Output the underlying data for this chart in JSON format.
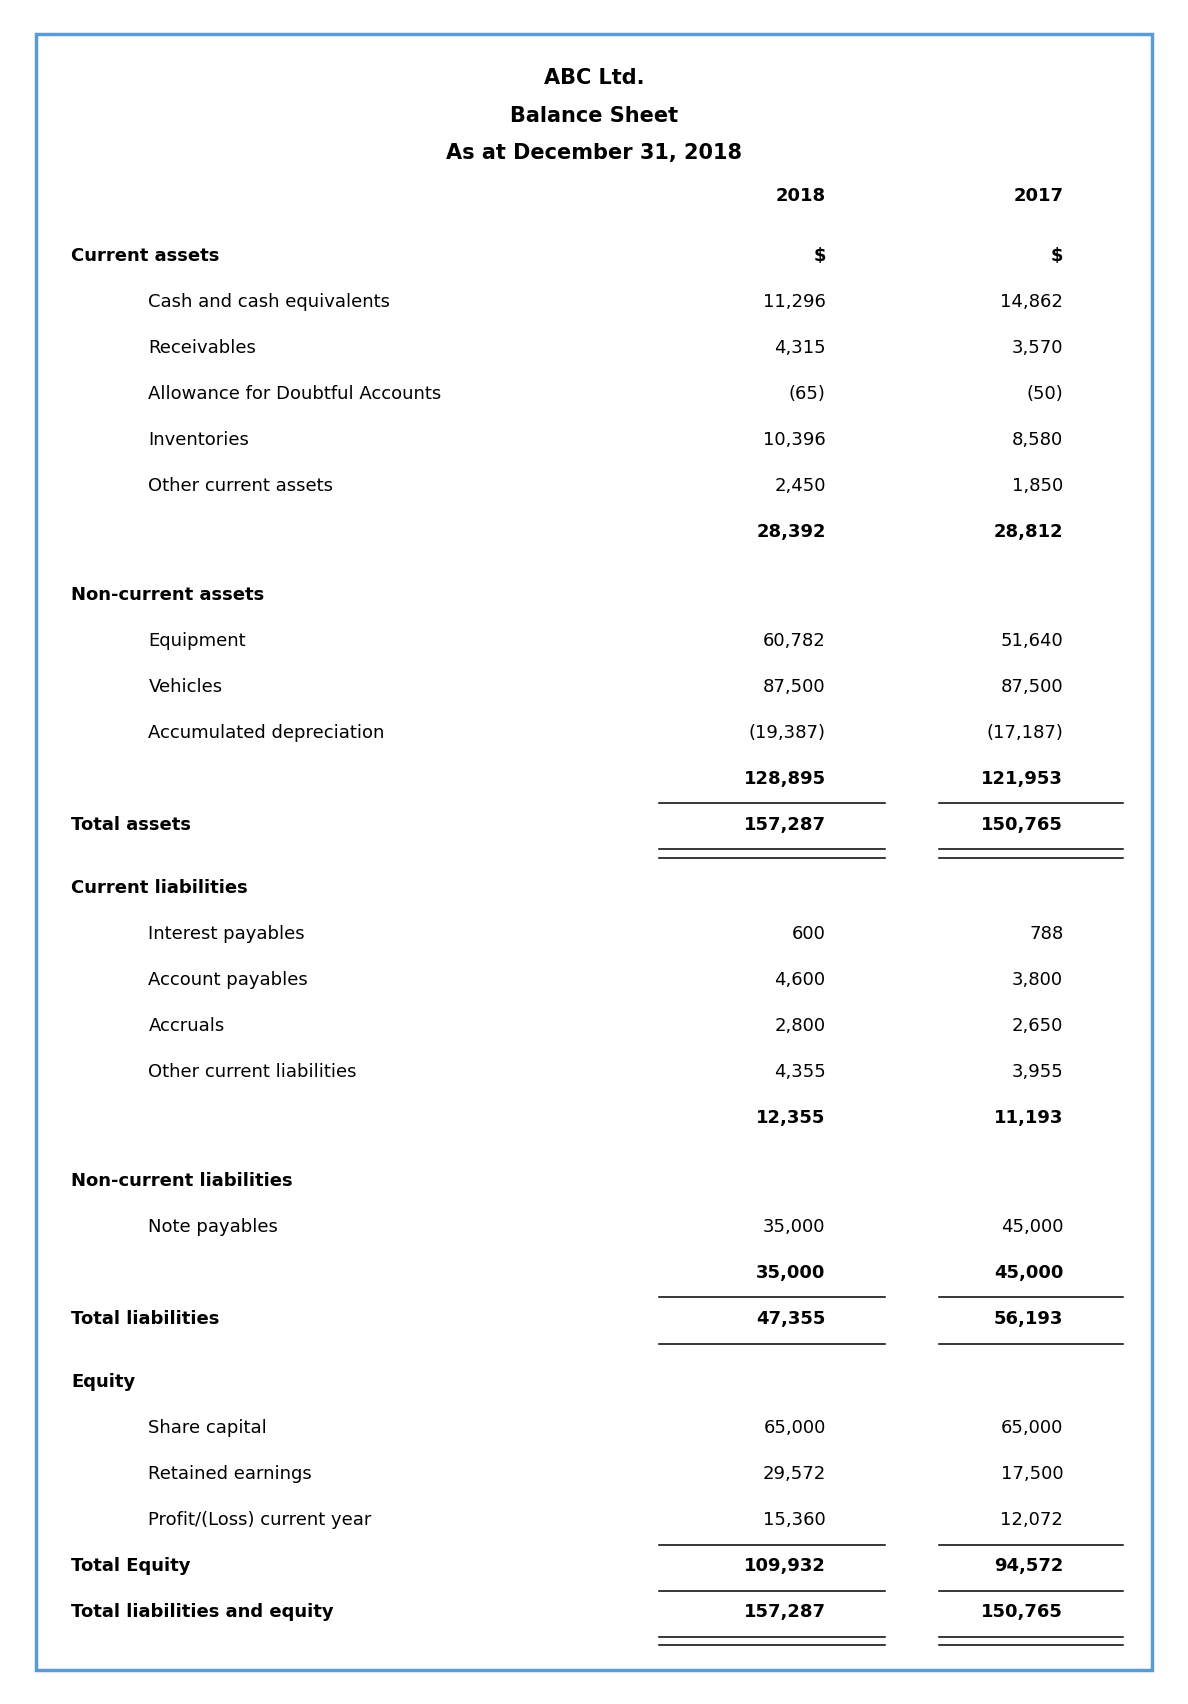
{
  "title_lines": [
    "ABC Ltd.",
    "Balance Sheet",
    "As at December 31, 2018"
  ],
  "col_headers": [
    "2018",
    "2017"
  ],
  "border_color": "#5B9BD5",
  "background_color": "#FFFFFF",
  "rows": [
    {
      "label": "Current assets",
      "val2018": "$",
      "val2017": "$",
      "indent": 0,
      "bold": true,
      "underline_below": false,
      "double_underline": false,
      "gap_above": true
    },
    {
      "label": "Cash and cash equivalents",
      "val2018": "11,296",
      "val2017": "14,862",
      "indent": 1,
      "bold": false,
      "underline_below": false,
      "double_underline": false,
      "gap_above": false
    },
    {
      "label": "Receivables",
      "val2018": "4,315",
      "val2017": "3,570",
      "indent": 1,
      "bold": false,
      "underline_below": false,
      "double_underline": false,
      "gap_above": false
    },
    {
      "label": "Allowance for Doubtful Accounts",
      "val2018": "(65)",
      "val2017": "(50)",
      "indent": 1,
      "bold": false,
      "underline_below": false,
      "double_underline": false,
      "gap_above": false
    },
    {
      "label": "Inventories",
      "val2018": "10,396",
      "val2017": "8,580",
      "indent": 1,
      "bold": false,
      "underline_below": false,
      "double_underline": false,
      "gap_above": false
    },
    {
      "label": "Other current assets",
      "val2018": "2,450",
      "val2017": "1,850",
      "indent": 1,
      "bold": false,
      "underline_below": false,
      "double_underline": false,
      "gap_above": false
    },
    {
      "label": "",
      "val2018": "28,392",
      "val2017": "28,812",
      "indent": 1,
      "bold": true,
      "underline_below": false,
      "double_underline": false,
      "gap_above": false
    },
    {
      "label": "Non-current assets",
      "val2018": "",
      "val2017": "",
      "indent": 0,
      "bold": true,
      "underline_below": false,
      "double_underline": false,
      "gap_above": true
    },
    {
      "label": "Equipment",
      "val2018": "60,782",
      "val2017": "51,640",
      "indent": 1,
      "bold": false,
      "underline_below": false,
      "double_underline": false,
      "gap_above": false
    },
    {
      "label": "Vehicles",
      "val2018": "87,500",
      "val2017": "87,500",
      "indent": 1,
      "bold": false,
      "underline_below": false,
      "double_underline": false,
      "gap_above": false
    },
    {
      "label": "Accumulated depreciation",
      "val2018": "(19,387)",
      "val2017": "(17,187)",
      "indent": 1,
      "bold": false,
      "underline_below": false,
      "double_underline": false,
      "gap_above": false
    },
    {
      "label": "",
      "val2018": "128,895",
      "val2017": "121,953",
      "indent": 1,
      "bold": true,
      "underline_below": true,
      "double_underline": false,
      "gap_above": false
    },
    {
      "label": "Total assets",
      "val2018": "157,287",
      "val2017": "150,765",
      "indent": 0,
      "bold": true,
      "underline_below": true,
      "double_underline": true,
      "gap_above": false
    },
    {
      "label": "Current liabilities",
      "val2018": "",
      "val2017": "",
      "indent": 0,
      "bold": true,
      "underline_below": false,
      "double_underline": false,
      "gap_above": true
    },
    {
      "label": "Interest payables",
      "val2018": "600",
      "val2017": "788",
      "indent": 1,
      "bold": false,
      "underline_below": false,
      "double_underline": false,
      "gap_above": false
    },
    {
      "label": "Account payables",
      "val2018": "4,600",
      "val2017": "3,800",
      "indent": 1,
      "bold": false,
      "underline_below": false,
      "double_underline": false,
      "gap_above": false
    },
    {
      "label": "Accruals",
      "val2018": "2,800",
      "val2017": "2,650",
      "indent": 1,
      "bold": false,
      "underline_below": false,
      "double_underline": false,
      "gap_above": false
    },
    {
      "label": "Other current liabilities",
      "val2018": "4,355",
      "val2017": "3,955",
      "indent": 1,
      "bold": false,
      "underline_below": false,
      "double_underline": false,
      "gap_above": false
    },
    {
      "label": "",
      "val2018": "12,355",
      "val2017": "11,193",
      "indent": 1,
      "bold": true,
      "underline_below": false,
      "double_underline": false,
      "gap_above": false
    },
    {
      "label": "Non-current liabilities",
      "val2018": "",
      "val2017": "",
      "indent": 0,
      "bold": true,
      "underline_below": false,
      "double_underline": false,
      "gap_above": true
    },
    {
      "label": "Note payables",
      "val2018": "35,000",
      "val2017": "45,000",
      "indent": 1,
      "bold": false,
      "underline_below": false,
      "double_underline": false,
      "gap_above": false
    },
    {
      "label": "",
      "val2018": "35,000",
      "val2017": "45,000",
      "indent": 1,
      "bold": true,
      "underline_below": true,
      "double_underline": false,
      "gap_above": false
    },
    {
      "label": "Total liabilities",
      "val2018": "47,355",
      "val2017": "56,193",
      "indent": 0,
      "bold": true,
      "underline_below": true,
      "double_underline": false,
      "gap_above": false
    },
    {
      "label": "Equity",
      "val2018": "",
      "val2017": "",
      "indent": 0,
      "bold": true,
      "underline_below": false,
      "double_underline": false,
      "gap_above": true
    },
    {
      "label": "Share capital",
      "val2018": "65,000",
      "val2017": "65,000",
      "indent": 1,
      "bold": false,
      "underline_below": false,
      "double_underline": false,
      "gap_above": false
    },
    {
      "label": "Retained earnings",
      "val2018": "29,572",
      "val2017": "17,500",
      "indent": 1,
      "bold": false,
      "underline_below": false,
      "double_underline": false,
      "gap_above": false
    },
    {
      "label": "Profit/(Loss) current year",
      "val2018": "15,360",
      "val2017": "12,072",
      "indent": 1,
      "bold": false,
      "underline_below": true,
      "double_underline": false,
      "gap_above": false
    },
    {
      "label": "Total Equity",
      "val2018": "109,932",
      "val2017": "94,572",
      "indent": 0,
      "bold": true,
      "underline_below": true,
      "double_underline": false,
      "gap_above": false
    },
    {
      "label": "Total liabilities and equity",
      "val2018": "157,287",
      "val2017": "150,765",
      "indent": 0,
      "bold": true,
      "underline_below": true,
      "double_underline": true,
      "gap_above": false
    }
  ],
  "font_size": 13,
  "header_font_size": 13,
  "title_font_size": 15
}
